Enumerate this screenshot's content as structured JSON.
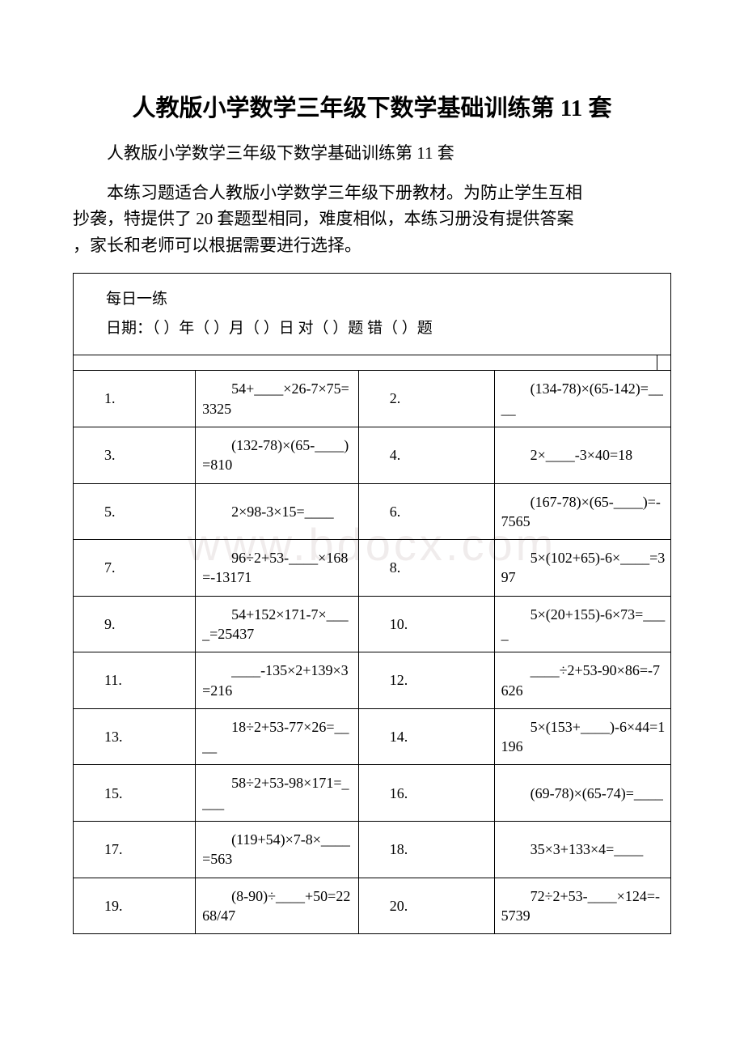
{
  "title": "人教版小学数学三年级下数学基础训练第 11 套",
  "subtitle": "人教版小学数学三年级下数学基础训练第 11 套",
  "intro_line1": "本练习题适合人教版小学数学三年级下册教材。为防止学生互相",
  "intro_line2": "抄袭，特提供了 20 套题型相同，难度相似，本练习册没有提供答案",
  "intro_line3": "，家长和老师可以根据需要进行选择。",
  "watermark": "www.bdocx.com",
  "header_line1": "每日一练",
  "header_line2": "日期：（ ）年（ ）月（ ）日 对（ ）题 错（ ）题",
  "rows": [
    {
      "n1": "1.",
      "e1": "54+____×26-7×75=3325",
      "n2": "2.",
      "e2": "(134-78)×(65-142)=____"
    },
    {
      "n1": "3.",
      "e1": "(132-78)×(65-____)=810",
      "n2": "4.",
      "e2": "2×____-3×40=18"
    },
    {
      "n1": "5.",
      "e1": "2×98-3×15=____",
      "n2": "6.",
      "e2": "(167-78)×(65-____)=-7565"
    },
    {
      "n1": "7.",
      "e1": "96÷2+53-____×168=-13171",
      "n2": "8.",
      "e2": "5×(102+65)-6×____=397"
    },
    {
      "n1": "9.",
      "e1": "54+152×171-7×____=25437",
      "n2": "10.",
      "e2": "5×(20+155)-6×73=____"
    },
    {
      "n1": "11.",
      "e1": "____-135×2+139×3=216",
      "n2": "12.",
      "e2": "____÷2+53-90×86=-7626"
    },
    {
      "n1": "13.",
      "e1": "18÷2+53-77×26=____",
      "n2": "14.",
      "e2": "5×(153+____)-6×44=1196"
    },
    {
      "n1": "15.",
      "e1": "58÷2+53-98×171=____",
      "n2": "16.",
      "e2": "(69-78)×(65-74)=____"
    },
    {
      "n1": "17.",
      "e1": "(119+54)×7-8×____=563",
      "n2": "18.",
      "e2": "35×3+133×4=____"
    },
    {
      "n1": "19.",
      "e1": "(8-90)÷____+50=2268/47",
      "n2": "20.",
      "e2": "72÷2+53-____×124=-5739"
    }
  ]
}
